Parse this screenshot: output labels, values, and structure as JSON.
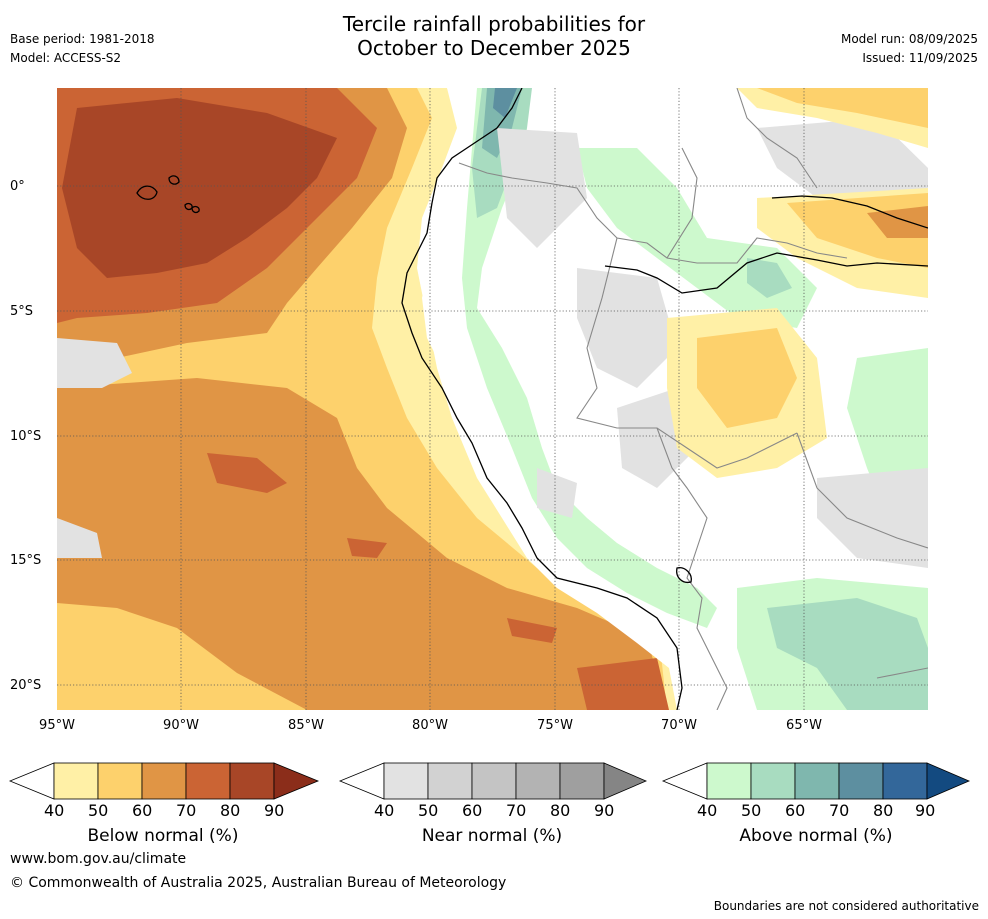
{
  "header": {
    "title_line1": "Tercile rainfall probabilities for",
    "title_line2": "October to December 2025",
    "base_period": "Base period: 1981-2018",
    "model": "Model: ACCESS-S2",
    "model_run": "Model run: 08/09/2025",
    "issued": "Issued: 11/09/2025"
  },
  "map": {
    "lat_labels": [
      "0°",
      "5°S",
      "10°S",
      "15°S",
      "20°S"
    ],
    "lon_labels": [
      "95°W",
      "90°W",
      "85°W",
      "80°W",
      "75°W",
      "70°W",
      "65°W"
    ],
    "colors": {
      "ocean_bg": "#ffffff",
      "below_40": "#fff0a6",
      "below_50": "#fdd16c",
      "below_60": "#e09545",
      "below_70": "#cb6434",
      "below_80": "#a84627",
      "near_40": "#e2e2e2",
      "near_50": "#d2d2d2",
      "above_40": "#cdf9cd",
      "above_50": "#a8dcc0",
      "above_60": "#7fb7ae",
      "above_70": "#5d8fa0",
      "coast": "#000000",
      "border": "#888888",
      "grid": "#555555"
    }
  },
  "legends": [
    {
      "title": "Below normal (%)",
      "ticks": [
        "40",
        "50",
        "60",
        "70",
        "80",
        "90"
      ],
      "colors": [
        "#fff0a6",
        "#fdd16c",
        "#e09545",
        "#cb6434",
        "#a84627",
        "#8b2d1a"
      ]
    },
    {
      "title": "Near normal (%)",
      "ticks": [
        "40",
        "50",
        "60",
        "70",
        "80",
        "90"
      ],
      "colors": [
        "#e2e2e2",
        "#d2d2d2",
        "#c4c4c4",
        "#b3b3b3",
        "#9f9f9f",
        "#858585"
      ]
    },
    {
      "title": "Above normal (%)",
      "ticks": [
        "40",
        "50",
        "60",
        "70",
        "80",
        "90"
      ],
      "colors": [
        "#cdf9cd",
        "#a8dcc0",
        "#7fb7ae",
        "#5d8fa0",
        "#33679a",
        "#134a80"
      ]
    }
  ],
  "footer": {
    "website": "www.bom.gov.au/climate",
    "copyright": "© Commonwealth of Australia 2025, Australian Bureau of Meteorology",
    "disclaimer": "Boundaries are not considered authoritative"
  }
}
